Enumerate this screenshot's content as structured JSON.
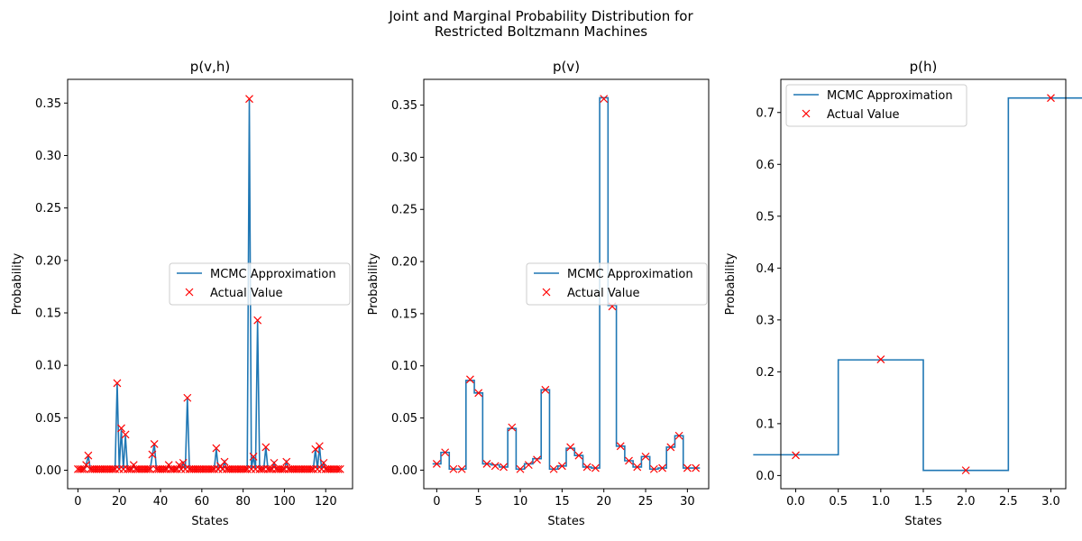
{
  "figure": {
    "suptitle": "Joint and Marginal Probability Distribution for\nRestricted Boltzmann Machines"
  },
  "colors": {
    "line": "#1f77b4",
    "marker": "#ff0000",
    "axis": "#000000"
  },
  "chart_data": [
    {
      "type": "line",
      "title": "p(v,h)",
      "xlabel": "States",
      "ylabel": "Probability",
      "xlim": [
        -5,
        133
      ],
      "ylim": [
        -0.0176,
        0.3726
      ],
      "xticks": [
        0,
        20,
        40,
        60,
        80,
        100,
        120
      ],
      "yticks": [
        0.0,
        0.05,
        0.1,
        0.15,
        0.2,
        0.25,
        0.3,
        0.35
      ],
      "tick_decimals": 2,
      "step": false,
      "legend": "center-right",
      "x_start": 0,
      "series": [
        {
          "name": "MCMC Approximation",
          "style": "line",
          "values": [
            0.001,
            0.001,
            0.001,
            0.001,
            0.005,
            0.014,
            0.001,
            0.001,
            0.001,
            0.001,
            0.001,
            0.001,
            0.001,
            0.001,
            0.001,
            0.001,
            0.001,
            0.001,
            0.001,
            0.083,
            0.001,
            0.039,
            0.001,
            0.033,
            0.001,
            0.001,
            0.001,
            0.005,
            0.001,
            0.001,
            0.001,
            0.001,
            0.001,
            0.001,
            0.001,
            0.001,
            0.014,
            0.025,
            0.001,
            0.001,
            0.001,
            0.001,
            0.001,
            0.001,
            0.005,
            0.001,
            0.001,
            0.001,
            0.001,
            0.005,
            0.001,
            0.007,
            0.001,
            0.069,
            0.001,
            0.001,
            0.001,
            0.001,
            0.001,
            0.001,
            0.001,
            0.001,
            0.001,
            0.001,
            0.001,
            0.001,
            0.001,
            0.02,
            0.001,
            0.004,
            0.001,
            0.008,
            0.001,
            0.001,
            0.001,
            0.001,
            0.001,
            0.001,
            0.001,
            0.001,
            0.001,
            0.001,
            0.001,
            0.353,
            0.001,
            0.013,
            0.001,
            0.142,
            0.001,
            0.001,
            0.001,
            0.022,
            0.001,
            0.001,
            0.001,
            0.007,
            0.001,
            0.001,
            0.001,
            0.001,
            0.001,
            0.008,
            0.001,
            0.001,
            0.001,
            0.001,
            0.001,
            0.001,
            0.001,
            0.001,
            0.001,
            0.001,
            0.001,
            0.001,
            0.001,
            0.02,
            0.001,
            0.023,
            0.001,
            0.007,
            0.001,
            0.001,
            0.001,
            0.001,
            0.001,
            0.001,
            0.001,
            0.001
          ]
        },
        {
          "name": "Actual Value",
          "style": "x",
          "values": [
            0.001,
            0.001,
            0.001,
            0.001,
            0.005,
            0.014,
            0.001,
            0.001,
            0.001,
            0.001,
            0.001,
            0.001,
            0.001,
            0.001,
            0.001,
            0.001,
            0.001,
            0.001,
            0.001,
            0.083,
            0.001,
            0.04,
            0.001,
            0.034,
            0.001,
            0.001,
            0.001,
            0.005,
            0.001,
            0.001,
            0.001,
            0.001,
            0.001,
            0.001,
            0.001,
            0.001,
            0.015,
            0.025,
            0.001,
            0.001,
            0.001,
            0.001,
            0.001,
            0.001,
            0.005,
            0.001,
            0.001,
            0.001,
            0.001,
            0.005,
            0.001,
            0.007,
            0.001,
            0.069,
            0.001,
            0.001,
            0.001,
            0.001,
            0.001,
            0.001,
            0.001,
            0.001,
            0.001,
            0.001,
            0.001,
            0.001,
            0.001,
            0.021,
            0.001,
            0.004,
            0.001,
            0.008,
            0.001,
            0.001,
            0.001,
            0.001,
            0.001,
            0.001,
            0.001,
            0.001,
            0.001,
            0.001,
            0.001,
            0.354,
            0.001,
            0.013,
            0.001,
            0.143,
            0.001,
            0.001,
            0.001,
            0.022,
            0.001,
            0.001,
            0.001,
            0.007,
            0.001,
            0.001,
            0.001,
            0.001,
            0.001,
            0.008,
            0.001,
            0.001,
            0.001,
            0.001,
            0.001,
            0.001,
            0.001,
            0.001,
            0.001,
            0.001,
            0.001,
            0.001,
            0.001,
            0.02,
            0.001,
            0.023,
            0.001,
            0.007,
            0.001,
            0.001,
            0.001,
            0.001,
            0.001,
            0.001,
            0.001,
            0.001
          ]
        }
      ]
    },
    {
      "type": "line",
      "title": "p(v)",
      "xlabel": "States",
      "ylabel": "Probability",
      "xlim": [
        -1.55,
        32.55
      ],
      "ylim": [
        -0.0178,
        0.3747
      ],
      "xticks": [
        0,
        5,
        10,
        15,
        20,
        25,
        30
      ],
      "yticks": [
        0.0,
        0.05,
        0.1,
        0.15,
        0.2,
        0.25,
        0.3,
        0.35
      ],
      "tick_decimals": 2,
      "step": true,
      "legend": "center-right",
      "x_start": 0,
      "series": [
        {
          "name": "MCMC Approximation",
          "style": "line",
          "values": [
            0.006,
            0.017,
            0.001,
            0.001,
            0.086,
            0.074,
            0.006,
            0.005,
            0.003,
            0.04,
            0.001,
            0.006,
            0.011,
            0.077,
            0.001,
            0.004,
            0.021,
            0.014,
            0.003,
            0.002,
            0.357,
            0.158,
            0.023,
            0.009,
            0.003,
            0.013,
            0.001,
            0.002,
            0.022,
            0.033,
            0.002,
            0.002
          ]
        },
        {
          "name": "Actual Value",
          "style": "x",
          "values": [
            0.006,
            0.017,
            0.001,
            0.001,
            0.087,
            0.074,
            0.006,
            0.004,
            0.003,
            0.041,
            0.001,
            0.005,
            0.01,
            0.077,
            0.001,
            0.004,
            0.022,
            0.014,
            0.003,
            0.002,
            0.356,
            0.157,
            0.023,
            0.009,
            0.003,
            0.013,
            0.001,
            0.002,
            0.022,
            0.033,
            0.002,
            0.002
          ]
        }
      ]
    },
    {
      "type": "line",
      "title": "p(h)",
      "xlabel": "States",
      "ylabel": "Probability",
      "xlim": [
        -0.175,
        3.175
      ],
      "ylim": [
        -0.0254,
        0.7639
      ],
      "xticks": [
        0.0,
        0.5,
        1.0,
        1.5,
        2.0,
        2.5,
        3.0
      ],
      "yticks": [
        0.0,
        0.1,
        0.2,
        0.3,
        0.4,
        0.5,
        0.6,
        0.7
      ],
      "tick_decimals": 1,
      "step": true,
      "legend": "top-left",
      "x_start": 0,
      "series": [
        {
          "name": "MCMC Approximation",
          "style": "line",
          "values": [
            0.04,
            0.223,
            0.01,
            0.728
          ]
        },
        {
          "name": "Actual Value",
          "style": "x",
          "values": [
            0.039,
            0.224,
            0.01,
            0.728
          ]
        }
      ]
    }
  ]
}
